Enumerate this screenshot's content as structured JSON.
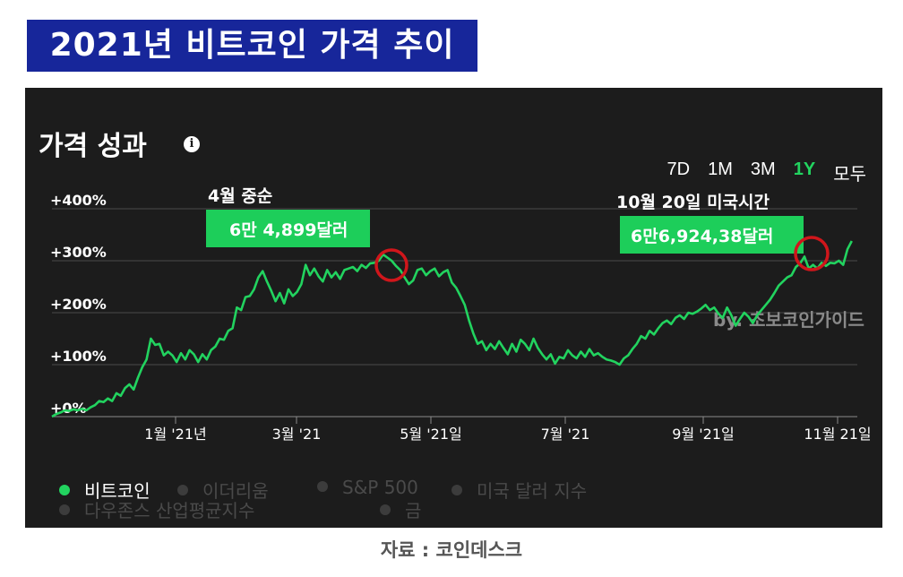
{
  "headline": "2021년 비트코인 가격 추이",
  "panel": {
    "title": "가격 성과",
    "info_icon": "info-icon",
    "ranges": [
      {
        "label": "7D",
        "active": false
      },
      {
        "label": "1M",
        "active": false
      },
      {
        "label": "3M",
        "active": false
      },
      {
        "label": "1Y",
        "active": true
      },
      {
        "label": "모두",
        "active": false
      }
    ]
  },
  "legend": [
    {
      "label": "비트코인",
      "active": true
    },
    {
      "label": "이더리움",
      "active": false
    },
    {
      "label": "S&P 500",
      "active": false
    },
    {
      "label": "미국 달러 지수",
      "active": false
    },
    {
      "label": "다우존스 산업평균지수",
      "active": false
    },
    {
      "label": "금",
      "active": false
    }
  ],
  "watermark": "by. 초보코인가이드",
  "source": "자료 : 코인데스크",
  "colors": {
    "line": "#22d35f",
    "callout": "#1dce5a",
    "marker": "#d0161b",
    "headline_bg": "#17269a",
    "panel_bg": "#1c1c1c"
  },
  "chart_data": {
    "type": "line",
    "title": "가격 성과",
    "series_name": "비트코인",
    "x_tick_labels": [
      "1월 '21년",
      "3월 '21",
      "5월 '21일",
      "7월 '21",
      "9월 '21일",
      "11월 21일"
    ],
    "y_tick_labels": [
      "+0%",
      "+100%",
      "+200%",
      "+300%",
      "+400%"
    ],
    "ylim": [
      0,
      400
    ],
    "grid": true,
    "points": [
      [
        0,
        0
      ],
      [
        4,
        5
      ],
      [
        8,
        8
      ],
      [
        12,
        12
      ],
      [
        16,
        11
      ],
      [
        20,
        14
      ],
      [
        24,
        12
      ],
      [
        28,
        15
      ],
      [
        32,
        12
      ],
      [
        36,
        18
      ],
      [
        40,
        22
      ],
      [
        44,
        30
      ],
      [
        48,
        28
      ],
      [
        52,
        35
      ],
      [
        56,
        30
      ],
      [
        60,
        45
      ],
      [
        64,
        40
      ],
      [
        68,
        55
      ],
      [
        72,
        62
      ],
      [
        76,
        52
      ],
      [
        80,
        75
      ],
      [
        84,
        95
      ],
      [
        88,
        110
      ],
      [
        92,
        150
      ],
      [
        96,
        138
      ],
      [
        100,
        140
      ],
      [
        104,
        118
      ],
      [
        108,
        125
      ],
      [
        112,
        118
      ],
      [
        116,
        105
      ],
      [
        120,
        122
      ],
      [
        124,
        110
      ],
      [
        128,
        128
      ],
      [
        132,
        120
      ],
      [
        136,
        105
      ],
      [
        140,
        120
      ],
      [
        144,
        110
      ],
      [
        148,
        128
      ],
      [
        152,
        135
      ],
      [
        156,
        150
      ],
      [
        160,
        148
      ],
      [
        164,
        165
      ],
      [
        168,
        170
      ],
      [
        172,
        210
      ],
      [
        176,
        205
      ],
      [
        180,
        230
      ],
      [
        184,
        232
      ],
      [
        188,
        245
      ],
      [
        192,
        268
      ],
      [
        196,
        280
      ],
      [
        200,
        260
      ],
      [
        204,
        242
      ],
      [
        208,
        222
      ],
      [
        212,
        238
      ],
      [
        216,
        218
      ],
      [
        220,
        245
      ],
      [
        224,
        232
      ],
      [
        228,
        240
      ],
      [
        232,
        255
      ],
      [
        236,
        292
      ],
      [
        240,
        272
      ],
      [
        244,
        285
      ],
      [
        248,
        270
      ],
      [
        252,
        260
      ],
      [
        256,
        282
      ],
      [
        260,
        268
      ],
      [
        264,
        278
      ],
      [
        268,
        265
      ],
      [
        272,
        282
      ],
      [
        276,
        285
      ],
      [
        280,
        288
      ],
      [
        284,
        280
      ],
      [
        288,
        292
      ],
      [
        292,
        286
      ],
      [
        296,
        295
      ],
      [
        300,
        296
      ],
      [
        304,
        300
      ],
      [
        308,
        312
      ],
      [
        312,
        306
      ],
      [
        316,
        300
      ],
      [
        320,
        290
      ],
      [
        324,
        282
      ],
      [
        328,
        268
      ],
      [
        332,
        255
      ],
      [
        336,
        262
      ],
      [
        340,
        282
      ],
      [
        344,
        285
      ],
      [
        348,
        272
      ],
      [
        352,
        280
      ],
      [
        356,
        285
      ],
      [
        360,
        270
      ],
      [
        364,
        278
      ],
      [
        368,
        282
      ],
      [
        372,
        258
      ],
      [
        376,
        248
      ],
      [
        380,
        232
      ],
      [
        384,
        215
      ],
      [
        388,
        185
      ],
      [
        392,
        160
      ],
      [
        396,
        140
      ],
      [
        400,
        145
      ],
      [
        404,
        128
      ],
      [
        408,
        140
      ],
      [
        412,
        130
      ],
      [
        416,
        145
      ],
      [
        420,
        132
      ],
      [
        424,
        120
      ],
      [
        428,
        140
      ],
      [
        432,
        125
      ],
      [
        436,
        148
      ],
      [
        440,
        140
      ],
      [
        444,
        128
      ],
      [
        448,
        150
      ],
      [
        452,
        132
      ],
      [
        456,
        120
      ],
      [
        460,
        110
      ],
      [
        464,
        120
      ],
      [
        468,
        102
      ],
      [
        472,
        115
      ],
      [
        476,
        112
      ],
      [
        480,
        128
      ],
      [
        484,
        118
      ],
      [
        488,
        112
      ],
      [
        492,
        125
      ],
      [
        496,
        115
      ],
      [
        500,
        130
      ],
      [
        504,
        118
      ],
      [
        508,
        122
      ],
      [
        512,
        115
      ],
      [
        516,
        110
      ],
      [
        520,
        108
      ],
      [
        524,
        105
      ],
      [
        528,
        100
      ],
      [
        532,
        112
      ],
      [
        536,
        118
      ],
      [
        540,
        130
      ],
      [
        544,
        140
      ],
      [
        548,
        155
      ],
      [
        552,
        150
      ],
      [
        556,
        165
      ],
      [
        560,
        158
      ],
      [
        564,
        170
      ],
      [
        568,
        180
      ],
      [
        572,
        185
      ],
      [
        576,
        178
      ],
      [
        580,
        190
      ],
      [
        584,
        195
      ],
      [
        588,
        188
      ],
      [
        592,
        200
      ],
      [
        596,
        198
      ],
      [
        600,
        202
      ],
      [
        604,
        208
      ],
      [
        608,
        215
      ],
      [
        612,
        205
      ],
      [
        616,
        210
      ],
      [
        620,
        198
      ],
      [
        624,
        190
      ],
      [
        628,
        210
      ],
      [
        632,
        195
      ],
      [
        636,
        175
      ],
      [
        640,
        188
      ],
      [
        644,
        200
      ],
      [
        648,
        192
      ],
      [
        652,
        180
      ],
      [
        656,
        195
      ],
      [
        660,
        205
      ],
      [
        664,
        215
      ],
      [
        668,
        225
      ],
      [
        672,
        238
      ],
      [
        676,
        252
      ],
      [
        680,
        260
      ],
      [
        684,
        268
      ],
      [
        688,
        272
      ],
      [
        692,
        288
      ],
      [
        696,
        295
      ],
      [
        700,
        308
      ],
      [
        704,
        285
      ],
      [
        708,
        292
      ],
      [
        712,
        285
      ],
      [
        716,
        296
      ],
      [
        720,
        290
      ],
      [
        724,
        296
      ],
      [
        728,
        295
      ],
      [
        732,
        300
      ],
      [
        736,
        292
      ],
      [
        740,
        322
      ],
      [
        744,
        338
      ]
    ]
  }
}
